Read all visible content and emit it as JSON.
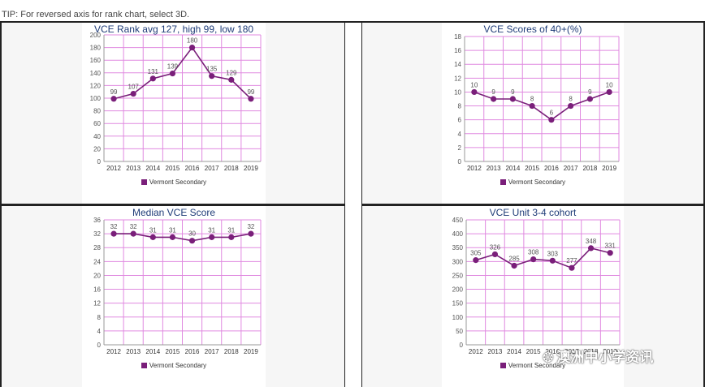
{
  "tip": "TIP: For reversed axis for rank chart, select 3D.",
  "chart_data": [
    {
      "type": "line",
      "title": "VCE Rank avg 127, high 99, low 180",
      "categories": [
        "2012",
        "2013",
        "2014",
        "2015",
        "2016",
        "2017",
        "2018",
        "2019"
      ],
      "series": [
        {
          "name": "Vermont Secondary",
          "values": [
            99,
            107,
            131,
            139,
            180,
            135,
            129,
            99
          ]
        }
      ],
      "ylim": [
        0,
        200
      ],
      "ystep": 20,
      "legend": "bottom",
      "grid": true
    },
    {
      "type": "line",
      "title": "VCE Scores of 40+(%)",
      "categories": [
        "2012",
        "2013",
        "2014",
        "2015",
        "2016",
        "2017",
        "2018",
        "2019"
      ],
      "series": [
        {
          "name": "Vermont Secondary",
          "values": [
            10,
            9,
            9,
            8,
            6,
            8,
            9,
            10
          ]
        }
      ],
      "ylim": [
        0,
        18
      ],
      "ystep": 2,
      "legend": "bottom",
      "grid": true
    },
    {
      "type": "line",
      "title": "Median VCE Score",
      "categories": [
        "2012",
        "2013",
        "2014",
        "2015",
        "2016",
        "2017",
        "2018",
        "2019"
      ],
      "series": [
        {
          "name": "Vermont Secondary",
          "values": [
            32,
            32,
            31,
            31,
            30,
            31,
            31,
            32
          ]
        }
      ],
      "ylim": [
        0,
        36
      ],
      "ystep": 4,
      "legend": "bottom",
      "grid": true
    },
    {
      "type": "line",
      "title": "VCE Unit 3-4 cohort",
      "categories": [
        "2012",
        "2013",
        "2014",
        "2015",
        "2016",
        "2017",
        "2018",
        "2019"
      ],
      "series": [
        {
          "name": "Vermont Secondary",
          "values": [
            305,
            326,
            285,
            308,
            303,
            277,
            348,
            331
          ]
        }
      ],
      "ylim": [
        0,
        450
      ],
      "ystep": 50,
      "legend": "bottom",
      "grid": true
    }
  ],
  "colors": {
    "line": "#7a1f7a",
    "grid": "#e08ae0",
    "title": "#1f3c78"
  },
  "watermark": {
    "icon": "wechat-icon",
    "text": "澳洲中小学资讯"
  }
}
